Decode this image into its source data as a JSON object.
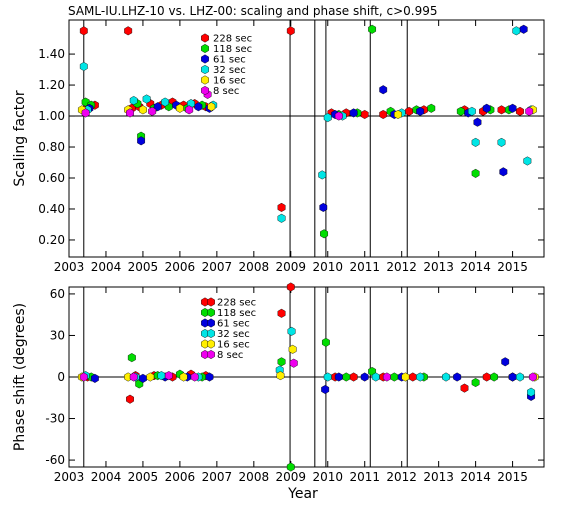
{
  "title": "SAML-IU.LHZ-10 vs. LHZ-00: scaling and phase shift, c>0.995",
  "xlabel": "Year",
  "legend": [
    {
      "label": "228 sec",
      "color": "#ff0000"
    },
    {
      "label": "118 sec",
      "color": "#00dd00"
    },
    {
      "label": "61 sec",
      "color": "#0000dd"
    },
    {
      "label": "32 sec",
      "color": "#00e5e5"
    },
    {
      "label": "16 sec",
      "color": "#ffee00"
    },
    {
      "label": "8 sec",
      "color": "#ee00ee"
    }
  ],
  "chart_data": [
    {
      "type": "scatter",
      "ylabel": "Scaling factor",
      "xlim": [
        2003,
        2015.85
      ],
      "ylim": [
        0.09,
        1.62
      ],
      "x_ticks": [
        2003,
        2004,
        2005,
        2006,
        2007,
        2008,
        2009,
        2010,
        2011,
        2012,
        2013,
        2014,
        2015
      ],
      "y_ticks": [
        0.2,
        0.4,
        0.6,
        0.8,
        1.0,
        1.2,
        1.4
      ],
      "y_tick_labels": [
        "0.20",
        "0.40",
        "0.60",
        "0.80",
        "1.00",
        "1.20",
        "1.40"
      ],
      "reference_line": 1.0,
      "vertical_lines": [
        2003.4,
        2008.98,
        2009.65,
        2009.95,
        2011.15,
        2012.15
      ],
      "series": [
        {
          "name": "228 sec",
          "points": [
            [
              2003.4,
              1.55
            ],
            [
              2003.5,
              1.06
            ],
            [
              2003.7,
              1.07
            ],
            [
              2004.6,
              1.55
            ],
            [
              2004.7,
              1.05
            ],
            [
              2004.9,
              1.06
            ],
            [
              2005.2,
              1.08
            ],
            [
              2005.5,
              1.07
            ],
            [
              2005.8,
              1.09
            ],
            [
              2006.1,
              1.07
            ],
            [
              2006.4,
              1.08
            ],
            [
              2006.7,
              1.06
            ],
            [
              2008.75,
              0.41
            ],
            [
              2009.0,
              1.55
            ],
            [
              2010.1,
              1.02
            ],
            [
              2010.5,
              1.02
            ],
            [
              2011.0,
              1.01
            ],
            [
              2011.5,
              1.01
            ],
            [
              2012.2,
              1.03
            ],
            [
              2012.6,
              1.04
            ],
            [
              2013.7,
              1.04
            ],
            [
              2014.2,
              1.03
            ],
            [
              2014.7,
              1.04
            ],
            [
              2015.2,
              1.03
            ]
          ]
        },
        {
          "name": "118 sec",
          "points": [
            [
              2003.45,
              1.09
            ],
            [
              2003.6,
              1.07
            ],
            [
              2004.85,
              1.08
            ],
            [
              2004.95,
              0.87
            ],
            [
              2005.3,
              1.05
            ],
            [
              2005.7,
              1.06
            ],
            [
              2006.2,
              1.05
            ],
            [
              2006.6,
              1.07
            ],
            [
              2009.9,
              0.24
            ],
            [
              2010.3,
              1.01
            ],
            [
              2010.8,
              1.02
            ],
            [
              2011.2,
              1.56
            ],
            [
              2011.7,
              1.03
            ],
            [
              2012.4,
              1.04
            ],
            [
              2012.8,
              1.05
            ],
            [
              2013.6,
              1.03
            ],
            [
              2014.0,
              0.63
            ],
            [
              2014.4,
              1.04
            ],
            [
              2014.9,
              1.04
            ]
          ]
        },
        {
          "name": "61 sec",
          "points": [
            [
              2003.55,
              1.05
            ],
            [
              2004.95,
              0.84
            ],
            [
              2005.4,
              1.06
            ],
            [
              2005.9,
              1.07
            ],
            [
              2006.5,
              1.06
            ],
            [
              2006.8,
              1.05
            ],
            [
              2009.88,
              0.41
            ],
            [
              2010.2,
              1.01
            ],
            [
              2010.7,
              1.02
            ],
            [
              2011.5,
              1.17
            ],
            [
              2011.8,
              1.01
            ],
            [
              2012.5,
              1.03
            ],
            [
              2013.8,
              1.02
            ],
            [
              2014.05,
              0.96
            ],
            [
              2014.3,
              1.05
            ],
            [
              2014.75,
              0.64
            ],
            [
              2015.0,
              1.05
            ],
            [
              2015.3,
              1.56
            ]
          ]
        },
        {
          "name": "32 sec",
          "points": [
            [
              2003.4,
              1.32
            ],
            [
              2003.5,
              1.04
            ],
            [
              2004.75,
              1.1
            ],
            [
              2005.1,
              1.11
            ],
            [
              2005.6,
              1.09
            ],
            [
              2006.3,
              1.08
            ],
            [
              2006.9,
              1.07
            ],
            [
              2008.75,
              0.34
            ],
            [
              2009.85,
              0.62
            ],
            [
              2010.0,
              0.99
            ],
            [
              2010.4,
              1.0
            ],
            [
              2012.0,
              1.02
            ],
            [
              2013.9,
              1.03
            ],
            [
              2014.0,
              0.83
            ],
            [
              2014.7,
              0.83
            ],
            [
              2015.1,
              1.55
            ],
            [
              2015.4,
              0.71
            ],
            [
              2015.5,
              1.04
            ]
          ]
        },
        {
          "name": "16 sec",
          "points": [
            [
              2003.35,
              1.04
            ],
            [
              2004.6,
              1.04
            ],
            [
              2005.0,
              1.04
            ],
            [
              2006.0,
              1.05
            ],
            [
              2006.85,
              1.06
            ],
            [
              2011.9,
              1.01
            ],
            [
              2015.55,
              1.04
            ]
          ]
        },
        {
          "name": "8 sec",
          "points": [
            [
              2003.45,
              1.02
            ],
            [
              2004.65,
              1.02
            ],
            [
              2005.25,
              1.03
            ],
            [
              2006.25,
              1.04
            ],
            [
              2006.75,
              1.14
            ],
            [
              2010.3,
              1.0
            ],
            [
              2015.45,
              1.03
            ]
          ]
        }
      ]
    },
    {
      "type": "scatter",
      "ylabel": "Phase shift (degrees)",
      "xlabel": "Year",
      "xlim": [
        2003,
        2015.85
      ],
      "ylim": [
        -65,
        65
      ],
      "x_ticks": [
        2003,
        2004,
        2005,
        2006,
        2007,
        2008,
        2009,
        2010,
        2011,
        2012,
        2013,
        2014,
        2015
      ],
      "y_ticks": [
        -60,
        -30,
        0,
        30,
        60
      ],
      "y_tick_labels": [
        "-60",
        "-30",
        "0",
        "30",
        "60"
      ],
      "reference_line": 0,
      "vertical_lines": [
        2003.4,
        2008.98,
        2009.65,
        2009.95,
        2011.15,
        2012.15
      ],
      "series": [
        {
          "name": "228 sec",
          "points": [
            [
              2003.5,
              0
            ],
            [
              2004.65,
              -16
            ],
            [
              2004.8,
              1
            ],
            [
              2005.3,
              1
            ],
            [
              2005.8,
              0
            ],
            [
              2006.3,
              2
            ],
            [
              2006.7,
              1
            ],
            [
              2008.75,
              46
            ],
            [
              2009.0,
              65
            ],
            [
              2010.2,
              0
            ],
            [
              2010.7,
              0
            ],
            [
              2011.5,
              0
            ],
            [
              2012.3,
              0
            ],
            [
              2013.7,
              -8
            ],
            [
              2014.3,
              0
            ],
            [
              2015.0,
              0
            ]
          ]
        },
        {
          "name": "118 sec",
          "points": [
            [
              2003.6,
              0
            ],
            [
              2004.7,
              14
            ],
            [
              2004.9,
              -5
            ],
            [
              2005.4,
              1
            ],
            [
              2006.0,
              2
            ],
            [
              2006.6,
              0
            ],
            [
              2008.75,
              11
            ],
            [
              2009.0,
              -65
            ],
            [
              2009.95,
              25
            ],
            [
              2010.5,
              0
            ],
            [
              2011.2,
              4
            ],
            [
              2011.8,
              0
            ],
            [
              2012.6,
              0
            ],
            [
              2014.0,
              -4
            ],
            [
              2014.5,
              0
            ]
          ]
        },
        {
          "name": "61 sec",
          "points": [
            [
              2003.7,
              -1
            ],
            [
              2005.0,
              -1
            ],
            [
              2005.6,
              0
            ],
            [
              2006.2,
              0
            ],
            [
              2006.8,
              0
            ],
            [
              2009.93,
              -9
            ],
            [
              2010.3,
              0
            ],
            [
              2011.0,
              0
            ],
            [
              2012.0,
              0
            ],
            [
              2013.5,
              0
            ],
            [
              2014.8,
              11
            ],
            [
              2015.0,
              0
            ],
            [
              2015.5,
              -14
            ]
          ]
        },
        {
          "name": "32 sec",
          "points": [
            [
              2003.45,
              1
            ],
            [
              2004.8,
              0
            ],
            [
              2005.5,
              1
            ],
            [
              2006.5,
              0
            ],
            [
              2008.7,
              5
            ],
            [
              2009.02,
              33
            ],
            [
              2010.0,
              0
            ],
            [
              2011.3,
              0
            ],
            [
              2012.5,
              0
            ],
            [
              2013.2,
              0
            ],
            [
              2015.2,
              0
            ],
            [
              2015.5,
              -11
            ]
          ]
        },
        {
          "name": "16 sec",
          "points": [
            [
              2003.35,
              0
            ],
            [
              2004.6,
              0
            ],
            [
              2005.2,
              0
            ],
            [
              2006.1,
              0
            ],
            [
              2008.72,
              1
            ],
            [
              2009.05,
              20
            ],
            [
              2012.1,
              0
            ],
            [
              2015.6,
              0
            ]
          ]
        },
        {
          "name": "8 sec",
          "points": [
            [
              2003.4,
              0
            ],
            [
              2004.75,
              0
            ],
            [
              2005.7,
              1
            ],
            [
              2006.4,
              0
            ],
            [
              2009.08,
              10
            ],
            [
              2011.6,
              0
            ],
            [
              2015.55,
              0
            ]
          ]
        }
      ]
    }
  ]
}
